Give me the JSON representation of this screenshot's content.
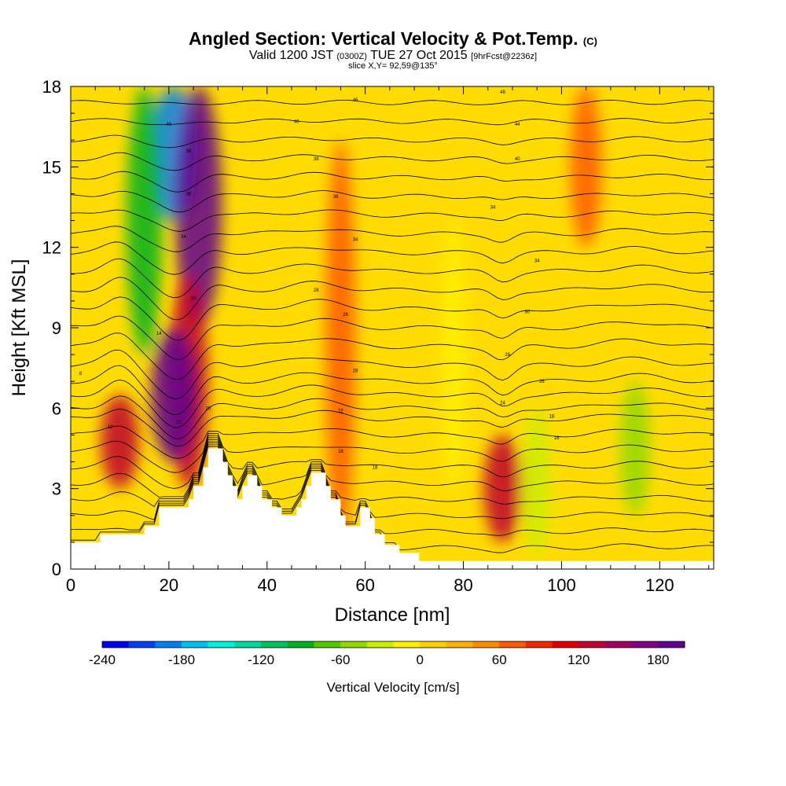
{
  "header": {
    "title": "Angled Section: Vertical Velocity & Pot.Temp.",
    "title_unit": "(C)",
    "valid_prefix": "Valid 1200 JST",
    "valid_utc": "(0300Z)",
    "valid_date": "TUE 27 Oct 2015",
    "forecast": "[9hrFcst@2236z]",
    "slice": "slice X,Y= 92,59@135°"
  },
  "chart_data": {
    "type": "heatmap",
    "xlabel": "Distance [nm]",
    "ylabel": "Height [Kft MSL]",
    "xlim": [
      0,
      131
    ],
    "ylim": [
      0,
      18
    ],
    "x_ticks": [
      "0",
      "20",
      "40",
      "60",
      "80",
      "100",
      "120"
    ],
    "y_ticks": [
      "0",
      "3",
      "6",
      "9",
      "12",
      "15",
      "18"
    ],
    "colorbar": {
      "label": "Vertical Velocity [cm/s]",
      "range": [
        -240,
        200
      ],
      "step": 20,
      "ticks": [
        "-240",
        "-180",
        "-120",
        "-60",
        "0",
        "60",
        "120",
        "180"
      ],
      "colors": [
        "#0000f0",
        "#0040f0",
        "#0080f0",
        "#00c0f0",
        "#00f0d8",
        "#00d8a0",
        "#00c060",
        "#00b020",
        "#50c800",
        "#90d800",
        "#c8ee00",
        "#fff000",
        "#ffd000",
        "#ffb000",
        "#ff8c00",
        "#ff5a00",
        "#f02800",
        "#e00000",
        "#c00030",
        "#a00060",
        "#800080",
        "#600090"
      ]
    },
    "features": [
      {
        "name": "downdraft",
        "x": 21,
        "y_range": [
          13,
          18
        ],
        "value": -190
      },
      {
        "name": "downdraft",
        "x": 15,
        "y_range": [
          8,
          18
        ],
        "value": -100
      },
      {
        "name": "updraft",
        "x": 26,
        "y_range": [
          9,
          18
        ],
        "value": 190
      },
      {
        "name": "updraft",
        "x": 24,
        "y_range": [
          3,
          11
        ],
        "value": 130
      },
      {
        "name": "updraft",
        "x": 21,
        "y_range": [
          4,
          9
        ],
        "value": 180
      },
      {
        "name": "updraft",
        "x": 10,
        "y_range": [
          3,
          6.5
        ],
        "value": 120
      },
      {
        "name": "updraft",
        "x": 55,
        "y_range": [
          1,
          16
        ],
        "value": 60
      },
      {
        "name": "updraft",
        "x": 105,
        "y_range": [
          12,
          18
        ],
        "value": 70
      },
      {
        "name": "updraft",
        "x": 88,
        "y_range": [
          1,
          5
        ],
        "value": 120
      },
      {
        "name": "downdraft",
        "x": 115,
        "y_range": [
          2,
          7
        ],
        "value": -55
      },
      {
        "name": "downdraft",
        "x": 95,
        "y_range": [
          0.5,
          6
        ],
        "value": -30
      },
      {
        "name": "downdraft",
        "x": 78,
        "y_range": [
          3,
          13
        ],
        "value": -20
      }
    ],
    "terrain": [
      [
        0,
        1
      ],
      [
        6,
        1
      ],
      [
        6,
        1.3
      ],
      [
        13,
        1.3
      ],
      [
        13,
        1.3
      ],
      [
        15,
        1.3
      ],
      [
        15,
        1.6
      ],
      [
        18,
        1.6
      ],
      [
        18,
        2.3
      ],
      [
        24,
        2.3
      ],
      [
        24,
        2.6
      ],
      [
        25,
        2.6
      ],
      [
        25,
        3.1
      ],
      [
        27,
        3.1
      ],
      [
        27,
        3.8
      ],
      [
        28,
        3.8
      ],
      [
        28,
        4.5
      ],
      [
        31,
        4.5
      ],
      [
        31,
        4.0
      ],
      [
        32,
        4.0
      ],
      [
        32,
        3.5
      ],
      [
        33,
        3.5
      ],
      [
        33,
        3.1
      ],
      [
        34,
        3.1
      ],
      [
        34,
        2.6
      ],
      [
        35,
        2.6
      ],
      [
        35,
        3.1
      ],
      [
        36,
        3.1
      ],
      [
        36,
        3.5
      ],
      [
        38,
        3.5
      ],
      [
        38,
        3.1
      ],
      [
        39,
        3.1
      ],
      [
        39,
        2.6
      ],
      [
        41,
        2.6
      ],
      [
        41,
        2.3
      ],
      [
        43,
        2.3
      ],
      [
        43,
        2.0
      ],
      [
        45,
        2.0
      ],
      [
        45,
        2.0
      ],
      [
        46,
        2.0
      ],
      [
        46,
        2.3
      ],
      [
        47,
        2.3
      ],
      [
        47,
        2.6
      ],
      [
        48,
        2.6
      ],
      [
        48,
        3.1
      ],
      [
        49,
        3.1
      ],
      [
        49,
        3.6
      ],
      [
        52,
        3.6
      ],
      [
        52,
        3.1
      ],
      [
        53,
        3.1
      ],
      [
        53,
        2.6
      ],
      [
        55,
        2.6
      ],
      [
        55,
        2.0
      ],
      [
        56,
        2.0
      ],
      [
        56,
        1.6
      ],
      [
        59,
        1.6
      ],
      [
        59,
        2.3
      ],
      [
        61,
        2.3
      ],
      [
        61,
        1.9
      ],
      [
        62,
        1.9
      ],
      [
        62,
        1.3
      ],
      [
        64,
        1.3
      ],
      [
        64,
        0.9
      ],
      [
        67,
        0.9
      ],
      [
        67,
        0.6
      ],
      [
        71,
        0.6
      ],
      [
        71,
        0.3
      ],
      [
        131,
        0.3
      ]
    ]
  },
  "contours": {
    "base_heights": [
      0.8,
      1.4,
      2.0,
      2.6,
      3.2,
      3.8,
      4.4,
      5.0,
      5.6,
      6.0,
      6.5,
      7.0,
      7.6,
      8.3,
      9.0,
      9.7,
      10.4,
      11.1,
      11.8,
      12.5,
      13.2,
      13.9,
      14.6,
      15.3,
      16.0,
      16.7,
      17.4,
      18.1
    ],
    "labels": [
      {
        "text": "8",
        "x": 2,
        "y": 7.3
      },
      {
        "text": "12",
        "x": 8,
        "y": 5.3
      },
      {
        "text": "14",
        "x": 18,
        "y": 8.8
      },
      {
        "text": "22",
        "x": 22,
        "y": 5.5
      },
      {
        "text": "20",
        "x": 28,
        "y": 6.0
      },
      {
        "text": "30",
        "x": 25,
        "y": 10.1
      },
      {
        "text": "34",
        "x": 23,
        "y": 12.4
      },
      {
        "text": "36",
        "x": 24,
        "y": 14.0
      },
      {
        "text": "38",
        "x": 24,
        "y": 15.6
      },
      {
        "text": "40",
        "x": 20,
        "y": 16.6
      },
      {
        "text": "46",
        "x": 58,
        "y": 17.5
      },
      {
        "text": "48",
        "x": 88,
        "y": 17.8
      },
      {
        "text": "40",
        "x": 46,
        "y": 16.7
      },
      {
        "text": "44",
        "x": 91,
        "y": 16.6
      },
      {
        "text": "38",
        "x": 50,
        "y": 15.3
      },
      {
        "text": "40",
        "x": 91,
        "y": 15.3
      },
      {
        "text": "36",
        "x": 54,
        "y": 13.9
      },
      {
        "text": "34",
        "x": 86,
        "y": 13.5
      },
      {
        "text": "34",
        "x": 58,
        "y": 12.3
      },
      {
        "text": "34",
        "x": 95,
        "y": 11.5
      },
      {
        "text": "28",
        "x": 50,
        "y": 10.4
      },
      {
        "text": "26",
        "x": 56,
        "y": 9.5
      },
      {
        "text": "30",
        "x": 93,
        "y": 9.6
      },
      {
        "text": "28",
        "x": 58,
        "y": 7.4
      },
      {
        "text": "26",
        "x": 89,
        "y": 8.0
      },
      {
        "text": "26",
        "x": 96,
        "y": 7.0
      },
      {
        "text": "22",
        "x": 55,
        "y": 5.9
      },
      {
        "text": "24",
        "x": 88,
        "y": 6.2
      },
      {
        "text": "18",
        "x": 98,
        "y": 5.7
      },
      {
        "text": "18",
        "x": 55,
        "y": 4.4
      },
      {
        "text": "18",
        "x": 62,
        "y": 3.8
      },
      {
        "text": "16",
        "x": 99,
        "y": 4.9
      }
    ]
  }
}
